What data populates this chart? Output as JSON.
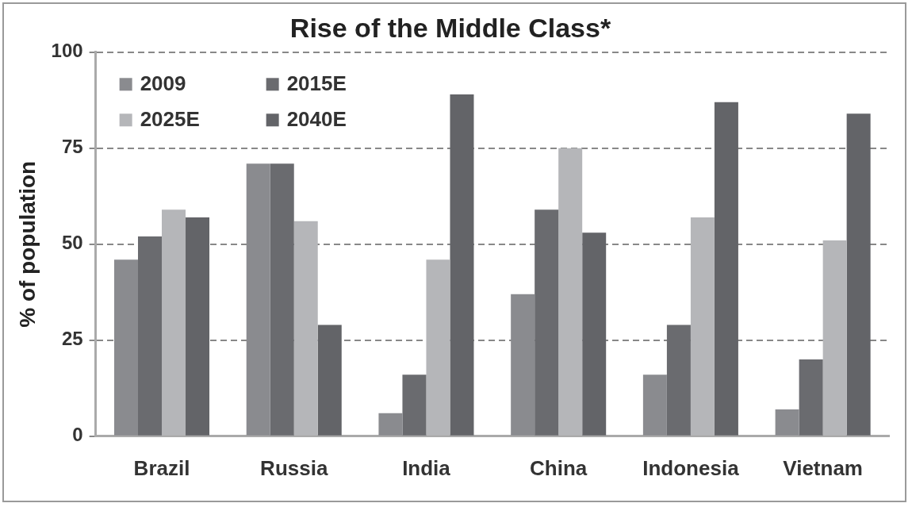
{
  "chart_data": {
    "type": "bar",
    "title": "Rise of the Middle Class*",
    "ylabel": "% of population",
    "categories": [
      "Brazil",
      "Russia",
      "India",
      "China",
      "Indonesia",
      "Vietnam"
    ],
    "series": [
      {
        "name": "2009",
        "color": "#8a8b8f",
        "values": [
          46,
          71,
          6,
          37,
          16,
          7
        ]
      },
      {
        "name": "2015E",
        "color": "#6a6b6f",
        "values": [
          52,
          71,
          16,
          59,
          29,
          20
        ]
      },
      {
        "name": "2025E",
        "color": "#b5b6b9",
        "values": [
          59,
          56,
          46,
          75,
          57,
          51
        ]
      },
      {
        "name": "2040E",
        "color": "#636468",
        "values": [
          57,
          29,
          89,
          53,
          87,
          84
        ]
      }
    ],
    "ylim": [
      0,
      100
    ],
    "yticks": [
      0,
      25,
      50,
      75,
      100
    ],
    "grid": "y",
    "legend": "top left"
  }
}
